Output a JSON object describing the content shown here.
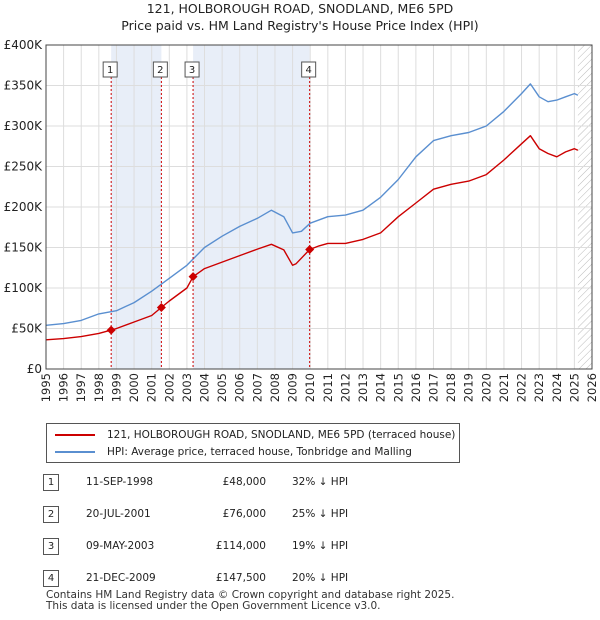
{
  "title_line1": "121, HOLBOROUGH ROAD, SNODLAND, ME6 5PD",
  "title_line2": "Price paid vs. HM Land Registry's House Price Index (HPI)",
  "legend": {
    "property": "121, HOLBOROUGH ROAD, SNODLAND, ME6 5PD (terraced house)",
    "hpi": "HPI: Average price, terraced house, Tonbridge and Malling"
  },
  "colors": {
    "property": "#cc0000",
    "hpi": "#5a8fd0",
    "shade": "#e8eef8",
    "grid": "#dddddd"
  },
  "transactions": [
    {
      "num": "1",
      "date": "11-SEP-1998",
      "price": "£48,000",
      "hpi_diff": "32% ↓ HPI"
    },
    {
      "num": "2",
      "date": "20-JUL-2001",
      "price": "£76,000",
      "hpi_diff": "25% ↓ HPI"
    },
    {
      "num": "3",
      "date": "09-MAY-2003",
      "price": "£114,000",
      "hpi_diff": "19% ↓ HPI"
    },
    {
      "num": "4",
      "date": "21-DEC-2009",
      "price": "£147,500",
      "hpi_diff": "20% ↓ HPI"
    }
  ],
  "footer": {
    "line1": "Contains HM Land Registry data © Crown copyright and database right 2025.",
    "line2": "This data is licensed under the Open Government Licence v3.0."
  },
  "chart_data": {
    "type": "line",
    "title": "121, HOLBOROUGH ROAD, SNODLAND, ME6 5PD — Price paid vs. HM Land Registry's House Price Index (HPI)",
    "xlim": [
      1995,
      2026
    ],
    "ylim": [
      0,
      400000
    ],
    "x_ticks": [
      1995,
      1996,
      1997,
      1998,
      1999,
      2000,
      2001,
      2002,
      2003,
      2004,
      2005,
      2006,
      2007,
      2008,
      2009,
      2010,
      2011,
      2012,
      2013,
      2014,
      2015,
      2016,
      2017,
      2018,
      2019,
      2020,
      2021,
      2022,
      2023,
      2024,
      2025,
      2026
    ],
    "y_ticks": [
      {
        "value": 0,
        "label": "£0"
      },
      {
        "value": 50000,
        "label": "£50K"
      },
      {
        "value": 100000,
        "label": "£100K"
      },
      {
        "value": 150000,
        "label": "£150K"
      },
      {
        "value": 200000,
        "label": "£200K"
      },
      {
        "value": 250000,
        "label": "£250K"
      },
      {
        "value": 300000,
        "label": "£300K"
      },
      {
        "value": 350000,
        "label": "£350K"
      },
      {
        "value": 400000,
        "label": "£400K"
      }
    ],
    "shaded_ranges": [
      [
        1998.7,
        2001.55
      ],
      [
        2003.35,
        2009.97
      ]
    ],
    "future_hatch_from": 2025.2,
    "markers": [
      {
        "label": "1",
        "x": 1998.7
      },
      {
        "label": "2",
        "x": 2001.55
      },
      {
        "label": "3",
        "x": 2003.35
      },
      {
        "label": "4",
        "x": 2009.97
      }
    ],
    "sales": [
      {
        "x": 1998.7,
        "y": 48000
      },
      {
        "x": 2001.55,
        "y": 76000
      },
      {
        "x": 2003.35,
        "y": 114000
      },
      {
        "x": 2009.97,
        "y": 147500
      }
    ],
    "series": [
      {
        "name": "121, HOLBOROUGH ROAD, SNODLAND, ME6 5PD (terraced house)",
        "color": "#cc0000",
        "x": [
          1995,
          1996,
          1997,
          1998,
          1998.7,
          1999,
          2000,
          2001,
          2001.55,
          2002,
          2003,
          2003.35,
          2004,
          2005,
          2006,
          2007,
          2007.8,
          2008.5,
          2009,
          2009.2,
          2009.97,
          2010.5,
          2011,
          2012,
          2013,
          2014,
          2015,
          2016,
          2017,
          2018,
          2019,
          2020,
          2021,
          2022,
          2022.5,
          2023,
          2023.5,
          2024,
          2024.5,
          2025,
          2025.2
        ],
        "y": [
          36000,
          37500,
          40000,
          44000,
          48000,
          50000,
          58000,
          66000,
          76000,
          84000,
          100000,
          114000,
          124000,
          132000,
          140000,
          148000,
          154000,
          147000,
          128000,
          130000,
          147500,
          152000,
          155000,
          155000,
          160000,
          168000,
          188000,
          205000,
          222000,
          228000,
          232000,
          240000,
          258000,
          278000,
          288000,
          272000,
          266000,
          262000,
          268000,
          272000,
          270000
        ]
      },
      {
        "name": "HPI: Average price, terraced house, Tonbridge and Malling",
        "color": "#5a8fd0",
        "x": [
          1995,
          1996,
          1997,
          1998,
          1999,
          2000,
          2001,
          2002,
          2003,
          2004,
          2005,
          2006,
          2007,
          2007.8,
          2008.5,
          2009,
          2009.5,
          2010,
          2011,
          2012,
          2013,
          2014,
          2015,
          2016,
          2017,
          2018,
          2019,
          2020,
          2021,
          2022,
          2022.5,
          2023,
          2023.5,
          2024,
          2024.5,
          2025,
          2025.2
        ],
        "y": [
          54000,
          56000,
          60000,
          68000,
          72000,
          82000,
          96000,
          112000,
          128000,
          150000,
          164000,
          176000,
          186000,
          196000,
          188000,
          168000,
          170000,
          180000,
          188000,
          190000,
          196000,
          212000,
          234000,
          262000,
          282000,
          288000,
          292000,
          300000,
          318000,
          340000,
          352000,
          336000,
          330000,
          332000,
          336000,
          340000,
          338000
        ]
      }
    ]
  }
}
